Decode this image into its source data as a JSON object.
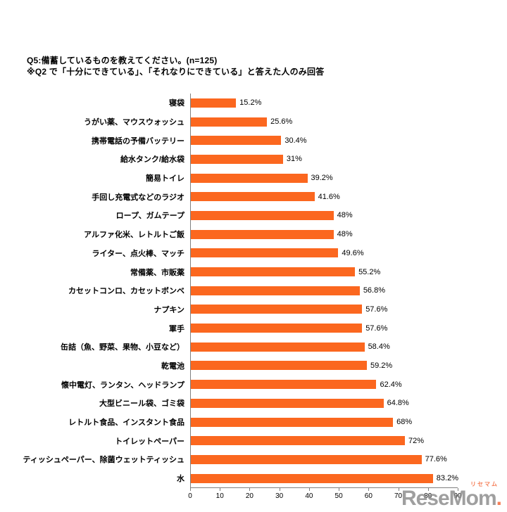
{
  "page": {
    "title_line1": "Q5:備蓄しているものを教えてください。(n=125)",
    "title_line2": "※Q2 で「十分にできている」、「それなりにできている」と答えた人のみ回答"
  },
  "chart_data": {
    "type": "bar",
    "orientation": "horizontal",
    "title": "Q5:備蓄しているものを教えてください。(n=125)",
    "subtitle": "※Q2 で「十分にできている」、「それなりにできている」と答えた人のみ回答",
    "n": 125,
    "categories": [
      "寝袋",
      "うがい薬、マウスウォッシュ",
      "携帯電話の予備バッテリー",
      "給水タンク/給水袋",
      "簡易トイレ",
      "手回し充電式などのラジオ",
      "ロープ、ガムテープ",
      "アルファ化米、レトルトご飯",
      "ライター、点火棒、マッチ",
      "常備薬、市販薬",
      "カセットコンロ、カセットボンベ",
      "ナプキン",
      "軍手",
      "缶詰（魚、野菜、果物、小豆など）",
      "乾電池",
      "懐中電灯、ランタン、ヘッドランプ",
      "大型ビニール袋、ゴミ袋",
      "レトルト食品、インスタント食品",
      "トイレットペーパー",
      "ティッシュペーパー、除菌ウェットティッシュ",
      "水"
    ],
    "values": [
      15.2,
      25.6,
      30.4,
      31,
      39.2,
      41.6,
      48,
      48,
      49.6,
      55.2,
      56.8,
      57.6,
      57.6,
      58.4,
      59.2,
      62.4,
      64.8,
      68,
      72,
      77.6,
      83.2
    ],
    "value_labels": [
      "15.2%",
      "25.6%",
      "30.4%",
      "31%",
      "39.2%",
      "41.6%",
      "48%",
      "48%",
      "49.6%",
      "55.2%",
      "56.8%",
      "57.6%",
      "57.6%",
      "58.4%",
      "59.2%",
      "62.4%",
      "64.8%",
      "68%",
      "72%",
      "77.6%",
      "83.2%"
    ],
    "xlim": [
      0,
      90
    ],
    "xticks": [
      0,
      10,
      20,
      30,
      40,
      50,
      60,
      70,
      80,
      90
    ],
    "xlabel": "",
    "ylabel": "",
    "bar_color": "#fb671f",
    "axis_color": "#808080",
    "grid": false,
    "legend": false
  },
  "watermark": {
    "main": "ReseMom",
    "dot": ".",
    "sub": "リセマム"
  }
}
